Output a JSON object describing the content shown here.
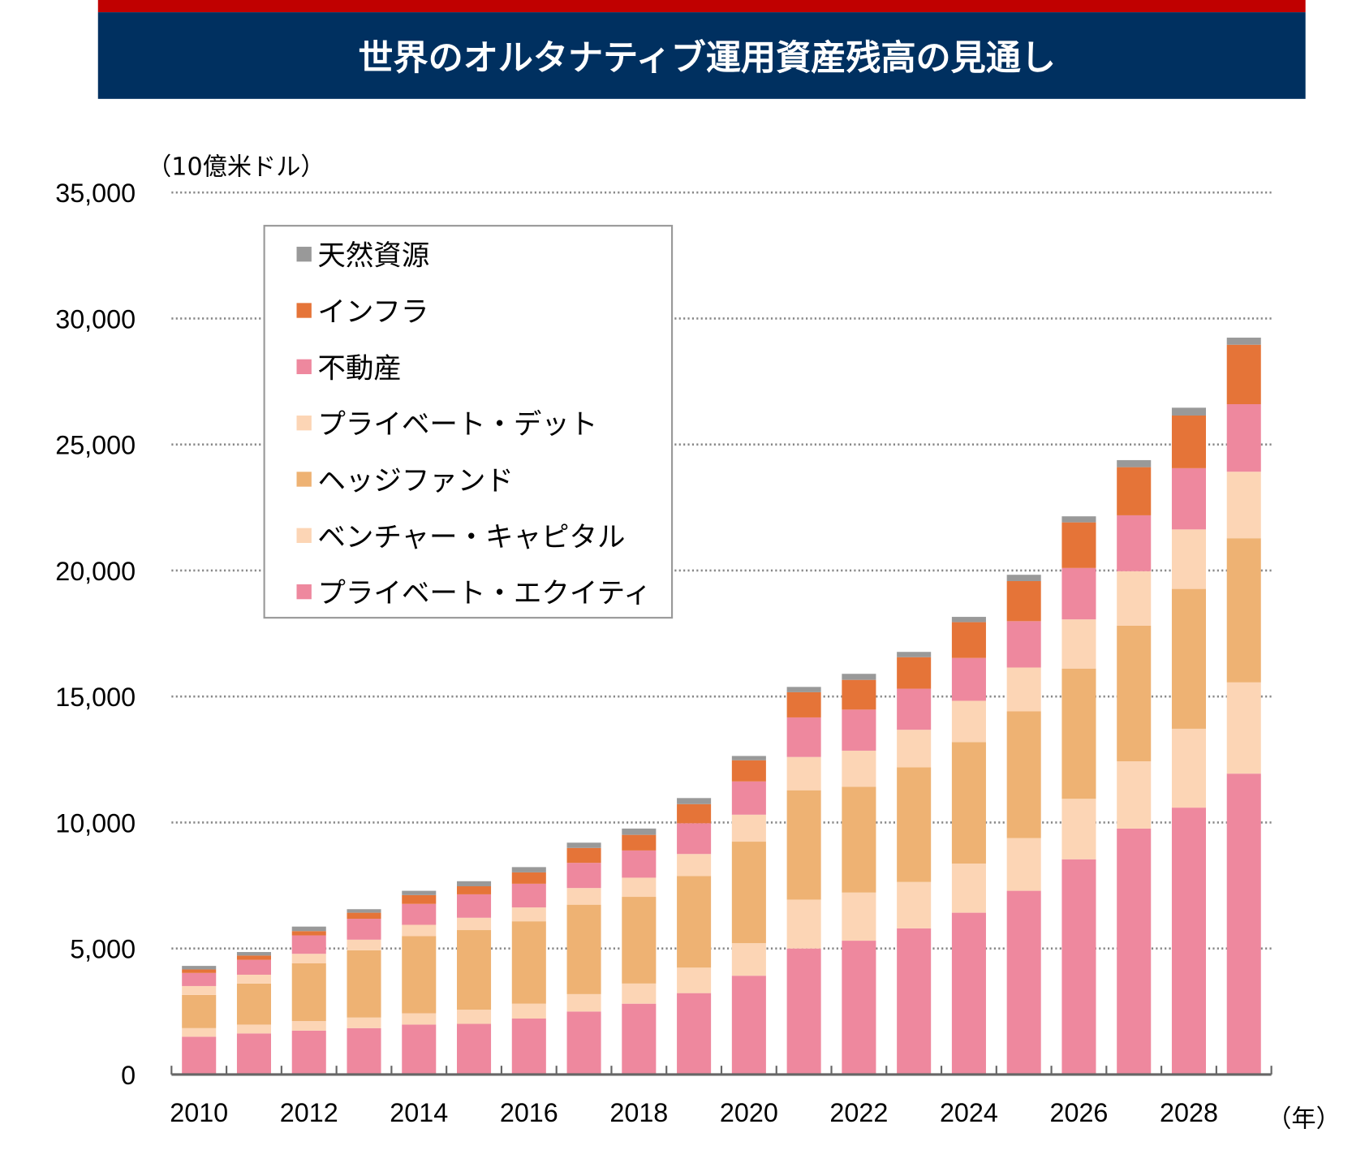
{
  "title": "世界のオルタナティブ運用資産残高の見通し",
  "colors": {
    "top_stripe": "#c00000",
    "title_bar": "#003060",
    "title_text": "#ffffff"
  },
  "chart_data": {
    "type": "bar",
    "stacked": true,
    "ylabel": "（10億米ドル）",
    "xlabel": "（年）",
    "ylim": [
      0,
      35000
    ],
    "yticks": [
      0,
      5000,
      10000,
      15000,
      20000,
      25000,
      30000,
      35000
    ],
    "ytick_labels": [
      "0",
      "5,000",
      "10,000",
      "15,000",
      "20,000",
      "25,000",
      "30,000",
      "35,000"
    ],
    "grid": true,
    "legend_position": "top-left",
    "categories": [
      "2010",
      "2011",
      "2012",
      "2013",
      "2014",
      "2015",
      "2016",
      "2017",
      "2018",
      "2019",
      "2020",
      "2021",
      "2022",
      "2023",
      "2024",
      "2025",
      "2026",
      "2027",
      "2028",
      "2029"
    ],
    "xtick_labels": [
      "2010",
      "2012",
      "2014",
      "2016",
      "2018",
      "2020",
      "2022",
      "2024",
      "2026",
      "2028"
    ],
    "series": [
      {
        "name": "プライベート・エクイティ",
        "color": "#ee889e",
        "values": [
          1500,
          1630,
          1740,
          1840,
          1980,
          2010,
          2220,
          2500,
          2810,
          3230,
          3920,
          5000,
          5310,
          5800,
          6420,
          7290,
          8540,
          9760,
          10590,
          11940
        ]
      },
      {
        "name": "ベンチャー・キャピタル",
        "color": "#fcd5b5",
        "values": [
          340,
          350,
          380,
          420,
          450,
          560,
          590,
          690,
          800,
          1010,
          1290,
          1940,
          1910,
          1840,
          1950,
          2090,
          2400,
          2670,
          3130,
          3620
        ]
      },
      {
        "name": "ヘッジファンド",
        "color": "#eeb273",
        "values": [
          1320,
          1630,
          2290,
          2670,
          3060,
          3160,
          3270,
          3550,
          3440,
          3640,
          4030,
          4340,
          4200,
          4550,
          4820,
          5030,
          5170,
          5380,
          5550,
          5720
        ]
      },
      {
        "name": "プライベート・デット",
        "color": "#fcd5b5",
        "values": [
          350,
          350,
          380,
          420,
          450,
          490,
          550,
          660,
          760,
          870,
          1070,
          1320,
          1430,
          1490,
          1640,
          1740,
          1950,
          2160,
          2360,
          2640
        ]
      },
      {
        "name": "不動産",
        "color": "#ee889e",
        "values": [
          520,
          590,
          730,
          830,
          830,
          930,
          940,
          1000,
          1080,
          1220,
          1320,
          1570,
          1630,
          1630,
          1700,
          1840,
          2040,
          2220,
          2430,
          2680
        ]
      },
      {
        "name": "インフラ",
        "color": "#e57438",
        "values": [
          140,
          170,
          170,
          240,
          350,
          320,
          450,
          590,
          620,
          760,
          840,
          1000,
          1180,
          1250,
          1420,
          1590,
          1810,
          1910,
          2090,
          2360
        ]
      },
      {
        "name": "天然資源",
        "color": "#999999",
        "values": [
          140,
          140,
          180,
          140,
          170,
          200,
          210,
          210,
          250,
          240,
          170,
          210,
          240,
          210,
          210,
          250,
          240,
          280,
          310,
          280
        ]
      }
    ]
  }
}
